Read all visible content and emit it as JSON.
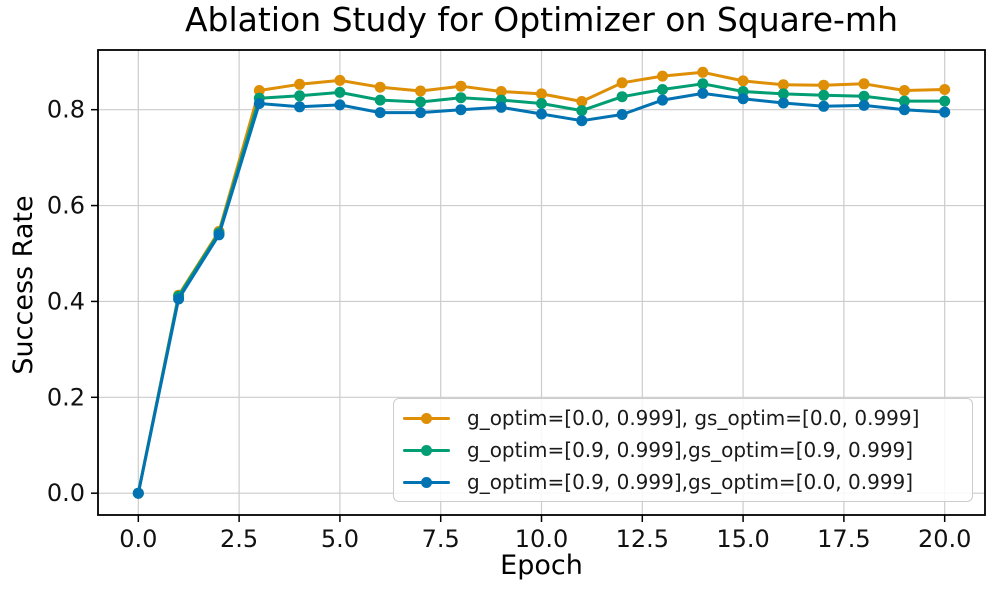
{
  "chart_data": {
    "type": "line",
    "title": "Ablation Study for Optimizer on Square-mh",
    "xlabel": "Epoch",
    "ylabel": "Success Rate",
    "x": [
      0,
      1,
      2,
      3,
      4,
      5,
      6,
      7,
      8,
      9,
      10,
      11,
      12,
      13,
      14,
      15,
      16,
      17,
      18,
      19,
      20
    ],
    "series": [
      {
        "name": "g_optim=[0.0, 0.999], gs_optim=[0.0, 0.999]",
        "color": "#DE8F05",
        "values": [
          0.0,
          0.413,
          0.546,
          0.84,
          0.853,
          0.861,
          0.847,
          0.839,
          0.849,
          0.838,
          0.833,
          0.817,
          0.856,
          0.87,
          0.878,
          0.86,
          0.852,
          0.851,
          0.854,
          0.84,
          0.842
        ]
      },
      {
        "name": "g_optim=[0.9, 0.999],gs_optim=[0.9, 0.999]",
        "color": "#029E73",
        "values": [
          0.0,
          0.411,
          0.543,
          0.824,
          0.829,
          0.836,
          0.82,
          0.816,
          0.825,
          0.82,
          0.813,
          0.798,
          0.827,
          0.842,
          0.854,
          0.838,
          0.833,
          0.83,
          0.828,
          0.818,
          0.818
        ]
      },
      {
        "name": "g_optim=[0.9, 0.999],gs_optim=[0.0, 0.999]",
        "color": "#0173B2",
        "values": [
          0.0,
          0.405,
          0.539,
          0.813,
          0.806,
          0.81,
          0.794,
          0.794,
          0.8,
          0.805,
          0.791,
          0.777,
          0.79,
          0.82,
          0.834,
          0.823,
          0.814,
          0.807,
          0.809,
          0.8,
          0.795
        ]
      }
    ],
    "marker": "o",
    "grid": true,
    "legend_position": "lower right",
    "xlim": [
      -1,
      21
    ],
    "ylim": [
      -0.0455,
      0.9245
    ],
    "x_ticks": [
      0,
      2.5,
      5,
      7.5,
      10,
      12.5,
      15,
      17.5,
      20
    ],
    "x_tick_labels": [
      "0.0",
      "2.5",
      "5.0",
      "7.5",
      "10.0",
      "12.5",
      "15.0",
      "17.5",
      "20.0"
    ],
    "y_ticks": [
      0,
      0.2,
      0.4,
      0.6,
      0.8
    ],
    "y_tick_labels": [
      "0.0",
      "0.2",
      "0.4",
      "0.6",
      "0.8"
    ]
  },
  "colors": {
    "background": "#ffffff",
    "grid": "#cccccc",
    "spine": "#000000",
    "tick_text": "#111111"
  }
}
